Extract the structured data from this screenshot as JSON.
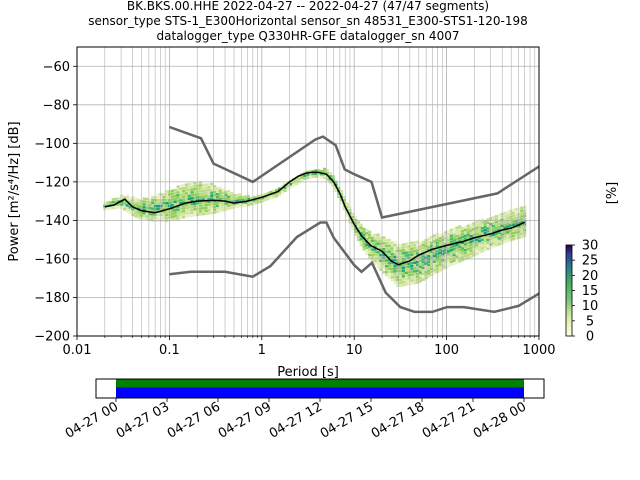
{
  "chart_data": {
    "type": "heatmap",
    "title_lines": [
      "BK.BKS.00.HHE   2022-04-27 -- 2022-04-27  (47/47 segments)",
      "sensor_type STS-1_E300Horizontal sensor_sn 48531_E300-STS1-120-198",
      "datalogger_type Q330HR-GFE datalogger_sn 4007"
    ],
    "xlabel": "Period [s]",
    "ylabel": "Power [m²/s⁴/Hz] [dB]",
    "x_scale": "log",
    "xlim": [
      0.01,
      1000
    ],
    "ylim": [
      -200,
      -50
    ],
    "x_ticks": [
      {
        "value": 0.01,
        "label": "0.01"
      },
      {
        "value": 0.1,
        "label": "0.1"
      },
      {
        "value": 1,
        "label": "1"
      },
      {
        "value": 10,
        "label": "10"
      },
      {
        "value": 100,
        "label": "100"
      },
      {
        "value": 1000,
        "label": "1000"
      }
    ],
    "y_ticks": [
      {
        "value": -60,
        "label": "−60"
      },
      {
        "value": -80,
        "label": "−80"
      },
      {
        "value": -100,
        "label": "−100"
      },
      {
        "value": -120,
        "label": "−120"
      },
      {
        "value": -140,
        "label": "−140"
      },
      {
        "value": -160,
        "label": "−160"
      },
      {
        "value": -180,
        "label": "−180"
      },
      {
        "value": -200,
        "label": "−200"
      }
    ],
    "grid": true,
    "colorbar": {
      "label": "[%]",
      "range": [
        0,
        30
      ],
      "ticks": [
        {
          "value": 0,
          "label": "0"
        },
        {
          "value": 5,
          "label": "5"
        },
        {
          "value": 10,
          "label": "10"
        },
        {
          "value": 15,
          "label": "15"
        },
        {
          "value": 20,
          "label": "20"
        },
        {
          "value": 25,
          "label": "25"
        },
        {
          "value": 30,
          "label": "30"
        }
      ]
    },
    "noise_model_high": {
      "x": [
        0.1,
        0.22,
        0.3,
        0.8,
        3.8,
        4.6,
        6.3,
        7.9,
        10,
        15.4,
        20,
        354.8,
        1000
      ],
      "y": [
        -91.5,
        -97.4,
        -110.5,
        -120,
        -98,
        -96.5,
        -101,
        -113.5,
        -116,
        -120,
        -138.5,
        -126,
        -112
      ]
    },
    "noise_model_low": {
      "x": [
        0.1,
        0.17,
        0.4,
        0.8,
        1.24,
        2.4,
        4.3,
        5,
        6,
        10,
        12,
        15.6,
        21.9,
        31.6,
        45,
        70,
        101,
        154,
        328,
        600,
        1000
      ],
      "y": [
        -168,
        -166.7,
        -166.7,
        -169.2,
        -163.7,
        -148.6,
        -141.1,
        -141.1,
        -149,
        -163.2,
        -166.7,
        -162,
        -177.5,
        -185,
        -187.5,
        -187.5,
        -185,
        -185,
        -187.5,
        -184.4,
        -178
      ]
    },
    "mode_curve": {
      "x": [
        0.02,
        0.025,
        0.03,
        0.033,
        0.04,
        0.05,
        0.07,
        0.1,
        0.15,
        0.2,
        0.3,
        0.4,
        0.5,
        0.7,
        1,
        1.5,
        2,
        2.5,
        3,
        3.5,
        4,
        5,
        6,
        7,
        8,
        10,
        12,
        15,
        20,
        25,
        30,
        40,
        50,
        70,
        100,
        150,
        200,
        300,
        400,
        500,
        700
      ],
      "y": [
        -133,
        -132,
        -130,
        -129,
        -133,
        -135,
        -136,
        -134,
        -131,
        -130,
        -129.5,
        -130,
        -131,
        -130,
        -128,
        -125,
        -120,
        -117,
        -115.5,
        -115,
        -115,
        -116,
        -120,
        -126,
        -133,
        -142,
        -148,
        -153,
        -156,
        -161,
        -163,
        -161,
        -158,
        -155,
        -153,
        -151,
        -149,
        -147,
        -145,
        -144,
        -141
      ]
    },
    "distribution_band": {
      "x": [
        0.02,
        0.03,
        0.04,
        0.05,
        0.07,
        0.1,
        0.15,
        0.2,
        0.3,
        0.5,
        0.7,
        1,
        1.5,
        2,
        3,
        4,
        5,
        6,
        8,
        10,
        12,
        15,
        20,
        30,
        50,
        70,
        100,
        200,
        300,
        500,
        700
      ],
      "upper": [
        -131,
        -127,
        -128,
        -129,
        -127,
        -124,
        -121,
        -120,
        -121,
        -126,
        -127,
        -127,
        -123,
        -119,
        -114,
        -113,
        -113,
        -117,
        -128,
        -137,
        -142,
        -146,
        -148,
        -152,
        -151,
        -148,
        -145,
        -141,
        -138,
        -135,
        -133
      ],
      "lower": [
        -134,
        -133,
        -137,
        -139,
        -140,
        -140,
        -138,
        -137,
        -136,
        -133,
        -132,
        -130,
        -127,
        -123,
        -118,
        -117,
        -118,
        -122,
        -135,
        -146,
        -153,
        -160,
        -166,
        -174,
        -172,
        -168,
        -164,
        -158,
        -154,
        -150,
        -148
      ]
    },
    "timeline": {
      "ticks": [
        "04-27 00",
        "04-27 03",
        "04-27 06",
        "04-27 09",
        "04-27 12",
        "04-27 15",
        "04-27 18",
        "04-27 21",
        "04-28 00"
      ],
      "data_coverage": [
        0,
        1
      ],
      "bar_colors": [
        "#008000",
        "#0000ff"
      ]
    }
  }
}
